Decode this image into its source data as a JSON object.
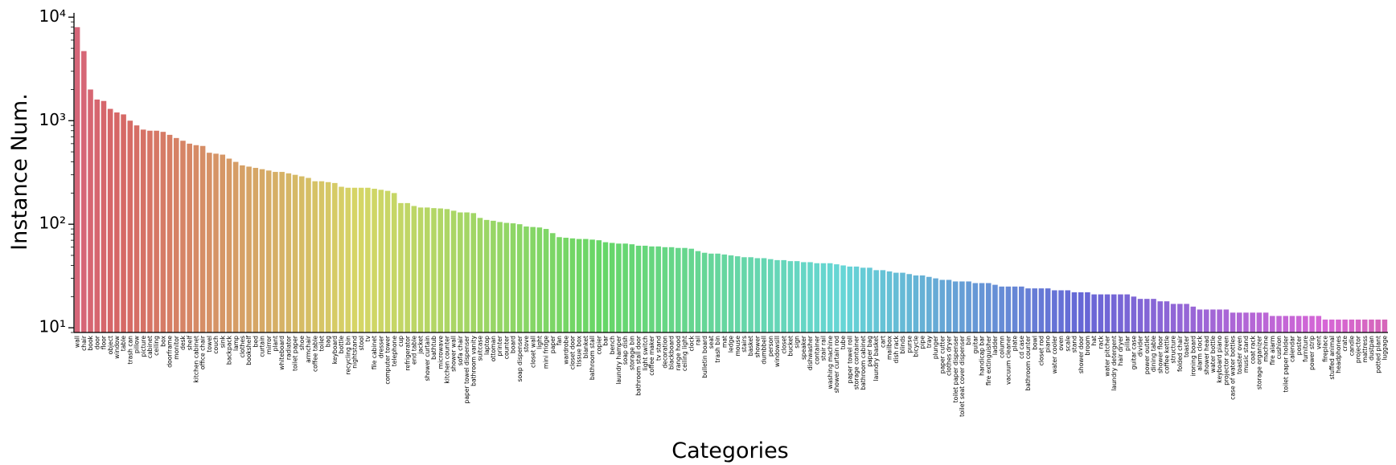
{
  "chart_data": {
    "type": "bar",
    "xlabel": "Categories",
    "ylabel": "Instance Num.",
    "log_scale": true,
    "palette": "husl",
    "ylim": [
      9,
      11000
    ],
    "yticks": [
      {
        "value": 10,
        "label": "10¹"
      },
      {
        "value": 100,
        "label": "10²"
      },
      {
        "value": 1000,
        "label": "10³"
      },
      {
        "value": 10000,
        "label": "10⁴"
      }
    ],
    "categories": [
      "wall",
      "chair",
      "book",
      "door",
      "floor",
      "object",
      "window",
      "table",
      "trash can",
      "pillow",
      "picture",
      "cabinet",
      "ceiling",
      "box",
      "doorframe",
      "monitor",
      "desk",
      "shelf",
      "kitchen cabinet",
      "office chair",
      "towel",
      "couch",
      "sink",
      "backpack",
      "lamp",
      "clothes",
      "bookshelf",
      "bed",
      "curtain",
      "mirror",
      "plant",
      "whiteboard",
      "radiator",
      "toilet paper",
      "shoe",
      "armchair",
      "coffee table",
      "toilet",
      "bag",
      "keyboard",
      "bottle",
      "recycling bin",
      "nightstand",
      "stool",
      "tv",
      "file cabinet",
      "dresser",
      "computer tower",
      "telephone",
      "cup",
      "refrigerator",
      "end table",
      "jacket",
      "shower curtain",
      "bathtub",
      "microwave",
      "kitchen counter",
      "shower wall",
      "sofa chair",
      "paper towel dispenser",
      "bathroom vanity",
      "suitcase",
      "laptop",
      "ottoman",
      "printer",
      "counter",
      "board",
      "soap dispenser",
      "stove",
      "closet wall",
      "light",
      "mini fridge",
      "paper",
      "fan",
      "wardrobe",
      "closet door",
      "tissue box",
      "blanket",
      "bathroom stall",
      "copier",
      "bar",
      "bench",
      "laundry hamper",
      "soap dish",
      "storage bin",
      "bathroom stall door",
      "light switch",
      "coffee maker",
      "tv stand",
      "decoration",
      "blackboard",
      "range hood",
      "ceiling light",
      "clock",
      "rail",
      "bulletin board",
      "seat",
      "trash bin",
      "mat",
      "ledge",
      "mouse",
      "stairs",
      "basket",
      "shower",
      "dumbbell",
      "person",
      "windowsill",
      "closet",
      "bucket",
      "sign",
      "speaker",
      "dishwasher",
      "container",
      "stair rail",
      "washing machine",
      "shower curtain rod",
      "tube",
      "paper towel roll",
      "storage container",
      "bathroom cabinet",
      "paper bag",
      "laundry basket",
      "cart",
      "mailbox",
      "dish rack",
      "blinds",
      "purse",
      "bicycle",
      "pipe",
      "tray",
      "plunger",
      "paper cutter",
      "clothes dryer",
      "toilet paper dispenser",
      "toilet seat cover dispenser",
      "bin",
      "guitar",
      "handicap bar",
      "fire extinguisher",
      "ladder",
      "column",
      "vacuum cleaner",
      "plate",
      "cd case",
      "bathroom counter",
      "bowl",
      "closet rod",
      "piano",
      "water cooler",
      "oven",
      "scale",
      "stand",
      "shower door",
      "broom",
      "hat",
      "rack",
      "water pitcher",
      "laundry detergent",
      "hair dryer",
      "pillar",
      "guitar case",
      "divider",
      "power outlet",
      "dining table",
      "shower floor",
      "coffee kettle",
      "structure",
      "folded chair",
      "toaster",
      "ironing board",
      "alarm clock",
      "shower head",
      "water bottle",
      "keyboard piano",
      "projector screen",
      "case of water bottles",
      "toaster oven",
      "music stand",
      "coat rack",
      "storage organizer",
      "machine",
      "fire alarm",
      "cushion",
      "toilet paper holder",
      "calendar",
      "poster",
      "furniture",
      "power strip",
      "vent",
      "fireplace",
      "stuffed animal",
      "headphones",
      "crate",
      "candle",
      "projector",
      "mattress",
      "dustpan",
      "potted plant",
      "luggage"
    ],
    "values": [
      8000,
      4700,
      2000,
      1600,
      1550,
      1300,
      1200,
      1150,
      1000,
      900,
      820,
      800,
      800,
      780,
      730,
      680,
      640,
      600,
      580,
      570,
      490,
      480,
      470,
      430,
      400,
      370,
      360,
      350,
      340,
      330,
      320,
      320,
      310,
      300,
      290,
      280,
      260,
      260,
      255,
      250,
      230,
      225,
      225,
      225,
      225,
      220,
      215,
      210,
      200,
      160,
      160,
      150,
      145,
      145,
      143,
      142,
      140,
      135,
      130,
      130,
      128,
      115,
      110,
      108,
      105,
      103,
      102,
      100,
      95,
      94,
      93,
      90,
      82,
      75,
      74,
      73,
      72,
      72,
      71,
      70,
      67,
      66,
      65,
      65,
      64,
      62,
      62,
      61,
      61,
      60,
      60,
      59,
      59,
      58,
      55,
      53,
      52,
      52,
      51,
      50,
      49,
      48,
      48,
      47,
      47,
      46,
      45,
      45,
      44,
      44,
      43,
      43,
      42,
      42,
      42,
      41,
      40,
      39,
      39,
      38,
      38,
      36,
      36,
      35,
      34,
      34,
      33,
      32,
      32,
      31,
      30,
      29,
      29,
      28,
      28,
      28,
      27,
      27,
      27,
      26,
      25,
      25,
      25,
      25,
      24,
      24,
      24,
      24,
      23,
      23,
      23,
      22,
      22,
      22,
      21,
      21,
      21,
      21,
      21,
      21,
      20,
      19,
      19,
      19,
      18,
      18,
      17,
      17,
      17,
      16,
      15,
      15,
      15,
      15,
      15,
      14,
      14,
      14,
      14,
      14,
      14,
      13,
      13,
      13,
      13,
      13,
      13,
      13,
      13,
      12,
      12,
      12,
      12,
      12,
      12,
      12,
      12,
      12,
      12
    ]
  }
}
